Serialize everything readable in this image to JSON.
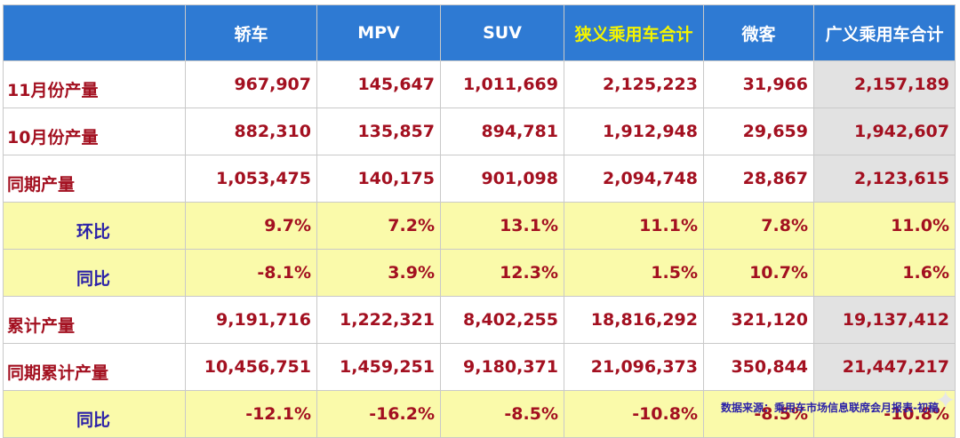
{
  "table": {
    "headers": [
      "",
      "轿车",
      "MPV",
      "SUV",
      "狭义乘用车合计",
      "微客",
      "广义乘用车合计"
    ],
    "rows": [
      {
        "label": "11月份产量",
        "values": [
          "967,907",
          "145,647",
          "1,011,669",
          "2,125,223",
          "31,966",
          "2,157,189"
        ]
      },
      {
        "label": "10月份产量",
        "values": [
          "882,310",
          "135,857",
          "894,781",
          "1,912,948",
          "29,659",
          "1,942,607"
        ]
      },
      {
        "label": "同期产量",
        "values": [
          "1,053,475",
          "140,175",
          "901,098",
          "2,094,748",
          "28,867",
          "2,123,615"
        ]
      },
      {
        "label": "环比",
        "values": [
          "9.7%",
          "7.2%",
          "13.1%",
          "11.1%",
          "7.8%",
          "11.0%"
        ]
      },
      {
        "label": "同比",
        "values": [
          "-8.1%",
          "3.9%",
          "12.3%",
          "1.5%",
          "10.7%",
          "1.6%"
        ]
      },
      {
        "label": "累计产量",
        "values": [
          "9,191,716",
          "1,222,321",
          "8,402,255",
          "18,816,292",
          "321,120",
          "19,137,412"
        ]
      },
      {
        "label": "同期累计产量",
        "values": [
          "10,456,751",
          "1,459,251",
          "9,180,371",
          "21,096,373",
          "350,844",
          "21,447,217"
        ]
      },
      {
        "label": "同比",
        "values": [
          "-12.1%",
          "-16.2%",
          "-8.5%",
          "-10.8%",
          "-8.5%",
          "-10.8%"
        ]
      }
    ]
  },
  "source": "数据来源：乘用车市场信息联席会月报表-初稿",
  "colors": {
    "header_bg": "#2e7ad3",
    "header_text": "#ffffff",
    "header_highlight_text": "#f4f400",
    "value_text": "#a31020",
    "indent_label_text": "#2b21a8",
    "pct_row_bg": "#fafaaa",
    "last_col_bg": "#e2e2e2"
  }
}
